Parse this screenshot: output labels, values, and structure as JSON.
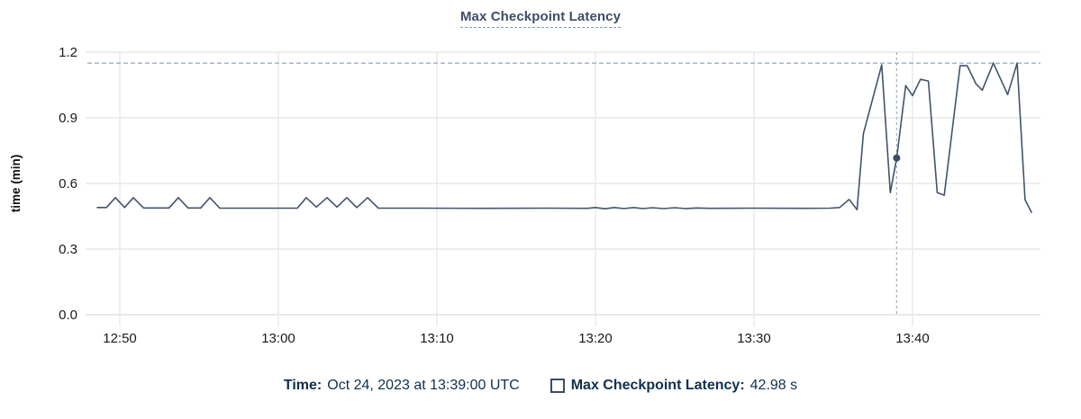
{
  "chart": {
    "title": "Max Checkpoint Latency"
  },
  "tooltip": {
    "time_label": "Time:",
    "time_value": "Oct 24, 2023 at 13:39:00 UTC",
    "series_label": "Max Checkpoint Latency:",
    "series_value": "42.98 s"
  },
  "colors": {
    "line": "#44536b",
    "dot": "#3d4c64",
    "title": "#3e4e68",
    "legend_text": "#10304f",
    "grid": "#e9e9e9",
    "axis_line": "#e2e2e2",
    "threshold_line": "#8b9cb4",
    "cursor_line": "#a7b2c2",
    "tick_text": "#1a1a1a"
  },
  "chart_data": {
    "type": "line",
    "title": "Max Checkpoint Latency",
    "xlabel": "",
    "ylabel": "time (min)",
    "ylim": [
      0,
      1.2
    ],
    "yticks": [
      0.0,
      0.3,
      0.6,
      0.9,
      1.2
    ],
    "ytick_labels": [
      "0.0",
      "0.3",
      "0.6",
      "0.9",
      "1.2"
    ],
    "xlim_minutes_from_1248": [
      -0.16,
      60.07
    ],
    "xticks_minutes_from_1248": [
      2,
      12,
      22,
      32,
      42,
      52
    ],
    "xtick_labels": [
      "12:50",
      "13:00",
      "13:10",
      "13:20",
      "13:30",
      "13:40"
    ],
    "grid": true,
    "threshold_value": 1.15,
    "cursor": {
      "t": 51.0,
      "value": 0.7163,
      "time_label": "13:39:00 UTC",
      "value_label": "42.98 s"
    },
    "series": [
      {
        "name": "Max Checkpoint Latency",
        "unit": "min",
        "points": [
          [
            0.58,
            0.49
          ],
          [
            1.15,
            0.49
          ],
          [
            1.72,
            0.535
          ],
          [
            2.3,
            0.49
          ],
          [
            2.85,
            0.535
          ],
          [
            3.5,
            0.488
          ],
          [
            5.1,
            0.488
          ],
          [
            5.69,
            0.535
          ],
          [
            6.3,
            0.488
          ],
          [
            7.1,
            0.488
          ],
          [
            7.68,
            0.535
          ],
          [
            8.3,
            0.487
          ],
          [
            10.0,
            0.487
          ],
          [
            13.2,
            0.487
          ],
          [
            13.76,
            0.535
          ],
          [
            14.4,
            0.492
          ],
          [
            15.07,
            0.535
          ],
          [
            15.7,
            0.492
          ],
          [
            16.32,
            0.535
          ],
          [
            16.95,
            0.49
          ],
          [
            17.63,
            0.535
          ],
          [
            18.3,
            0.487
          ],
          [
            21.0,
            0.487
          ],
          [
            25.0,
            0.486
          ],
          [
            29.0,
            0.487
          ],
          [
            31.5,
            0.486
          ],
          [
            32.0,
            0.49
          ],
          [
            32.6,
            0.484
          ],
          [
            33.2,
            0.49
          ],
          [
            33.8,
            0.485
          ],
          [
            34.4,
            0.49
          ],
          [
            35.0,
            0.485
          ],
          [
            35.6,
            0.489
          ],
          [
            36.3,
            0.485
          ],
          [
            37.0,
            0.489
          ],
          [
            37.7,
            0.485
          ],
          [
            38.4,
            0.488
          ],
          [
            39.2,
            0.486
          ],
          [
            42.0,
            0.487
          ],
          [
            45.0,
            0.486
          ],
          [
            46.8,
            0.487
          ],
          [
            47.4,
            0.49
          ],
          [
            48.0,
            0.527
          ],
          [
            48.5,
            0.48
          ],
          [
            48.9,
            0.827
          ],
          [
            50.06,
            1.142
          ],
          [
            50.6,
            0.558
          ],
          [
            51.0,
            0.7163
          ],
          [
            51.57,
            1.047
          ],
          [
            52.0,
            1.001
          ],
          [
            52.5,
            1.076
          ],
          [
            53.0,
            1.068
          ],
          [
            53.56,
            0.558
          ],
          [
            54.0,
            0.546
          ],
          [
            55.0,
            1.138
          ],
          [
            55.45,
            1.138
          ],
          [
            56.0,
            1.055
          ],
          [
            56.4,
            1.026
          ],
          [
            57.1,
            1.15
          ],
          [
            58.0,
            1.006
          ],
          [
            58.6,
            1.15
          ],
          [
            59.1,
            0.5255
          ],
          [
            59.5,
            0.468
          ]
        ]
      }
    ],
    "legend_position": "bottom"
  }
}
